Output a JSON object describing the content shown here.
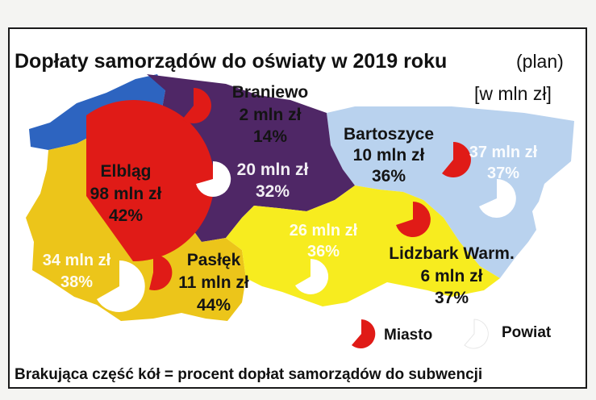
{
  "title": "Dopłaty samorządów do oświaty w 2019 roku",
  "title_plan": "(plan)",
  "unit": "[w mln zł]",
  "colors": {
    "city_pie": "#e01b17",
    "county_pie": "#ffffff",
    "elblag_region": "#ecc51a",
    "braniewo_region": "#4f2766",
    "bartoszyce_region": "#b9d2ee",
    "lidzbark_region": "#f7ec1f",
    "outside_blue": "#2d64c0"
  },
  "regions": {
    "braniewo": {
      "name": "Braniewo",
      "city_value": "2 mln zł",
      "city_pct": "14%",
      "county_value": "20 mln zł",
      "county_pct": "32%"
    },
    "elblag": {
      "name": "Elbląg",
      "city_value": "98 mln zł",
      "city_pct": "42%",
      "county_value": "34 mln zł",
      "county_pct": "38%"
    },
    "paslek": {
      "name": "Pasłęk",
      "city_value": "11 mln zł",
      "city_pct": "44%"
    },
    "bartoszyce": {
      "name": "Bartoszyce",
      "city_value": "10 mln zł",
      "city_pct": "36%",
      "county_value": "37 mln zł",
      "county_pct": "37%"
    },
    "lidzbark": {
      "name": "Lidzbark Warm.",
      "city_value": "6 mln zł",
      "city_pct": "37%",
      "county_value": "26 mln zł",
      "county_pct": "36%"
    }
  },
  "legend": {
    "city": "Miasto",
    "county": "Powiat"
  },
  "footer": "Brakująca część kół = procent dopłat samorządów do subwencji"
}
